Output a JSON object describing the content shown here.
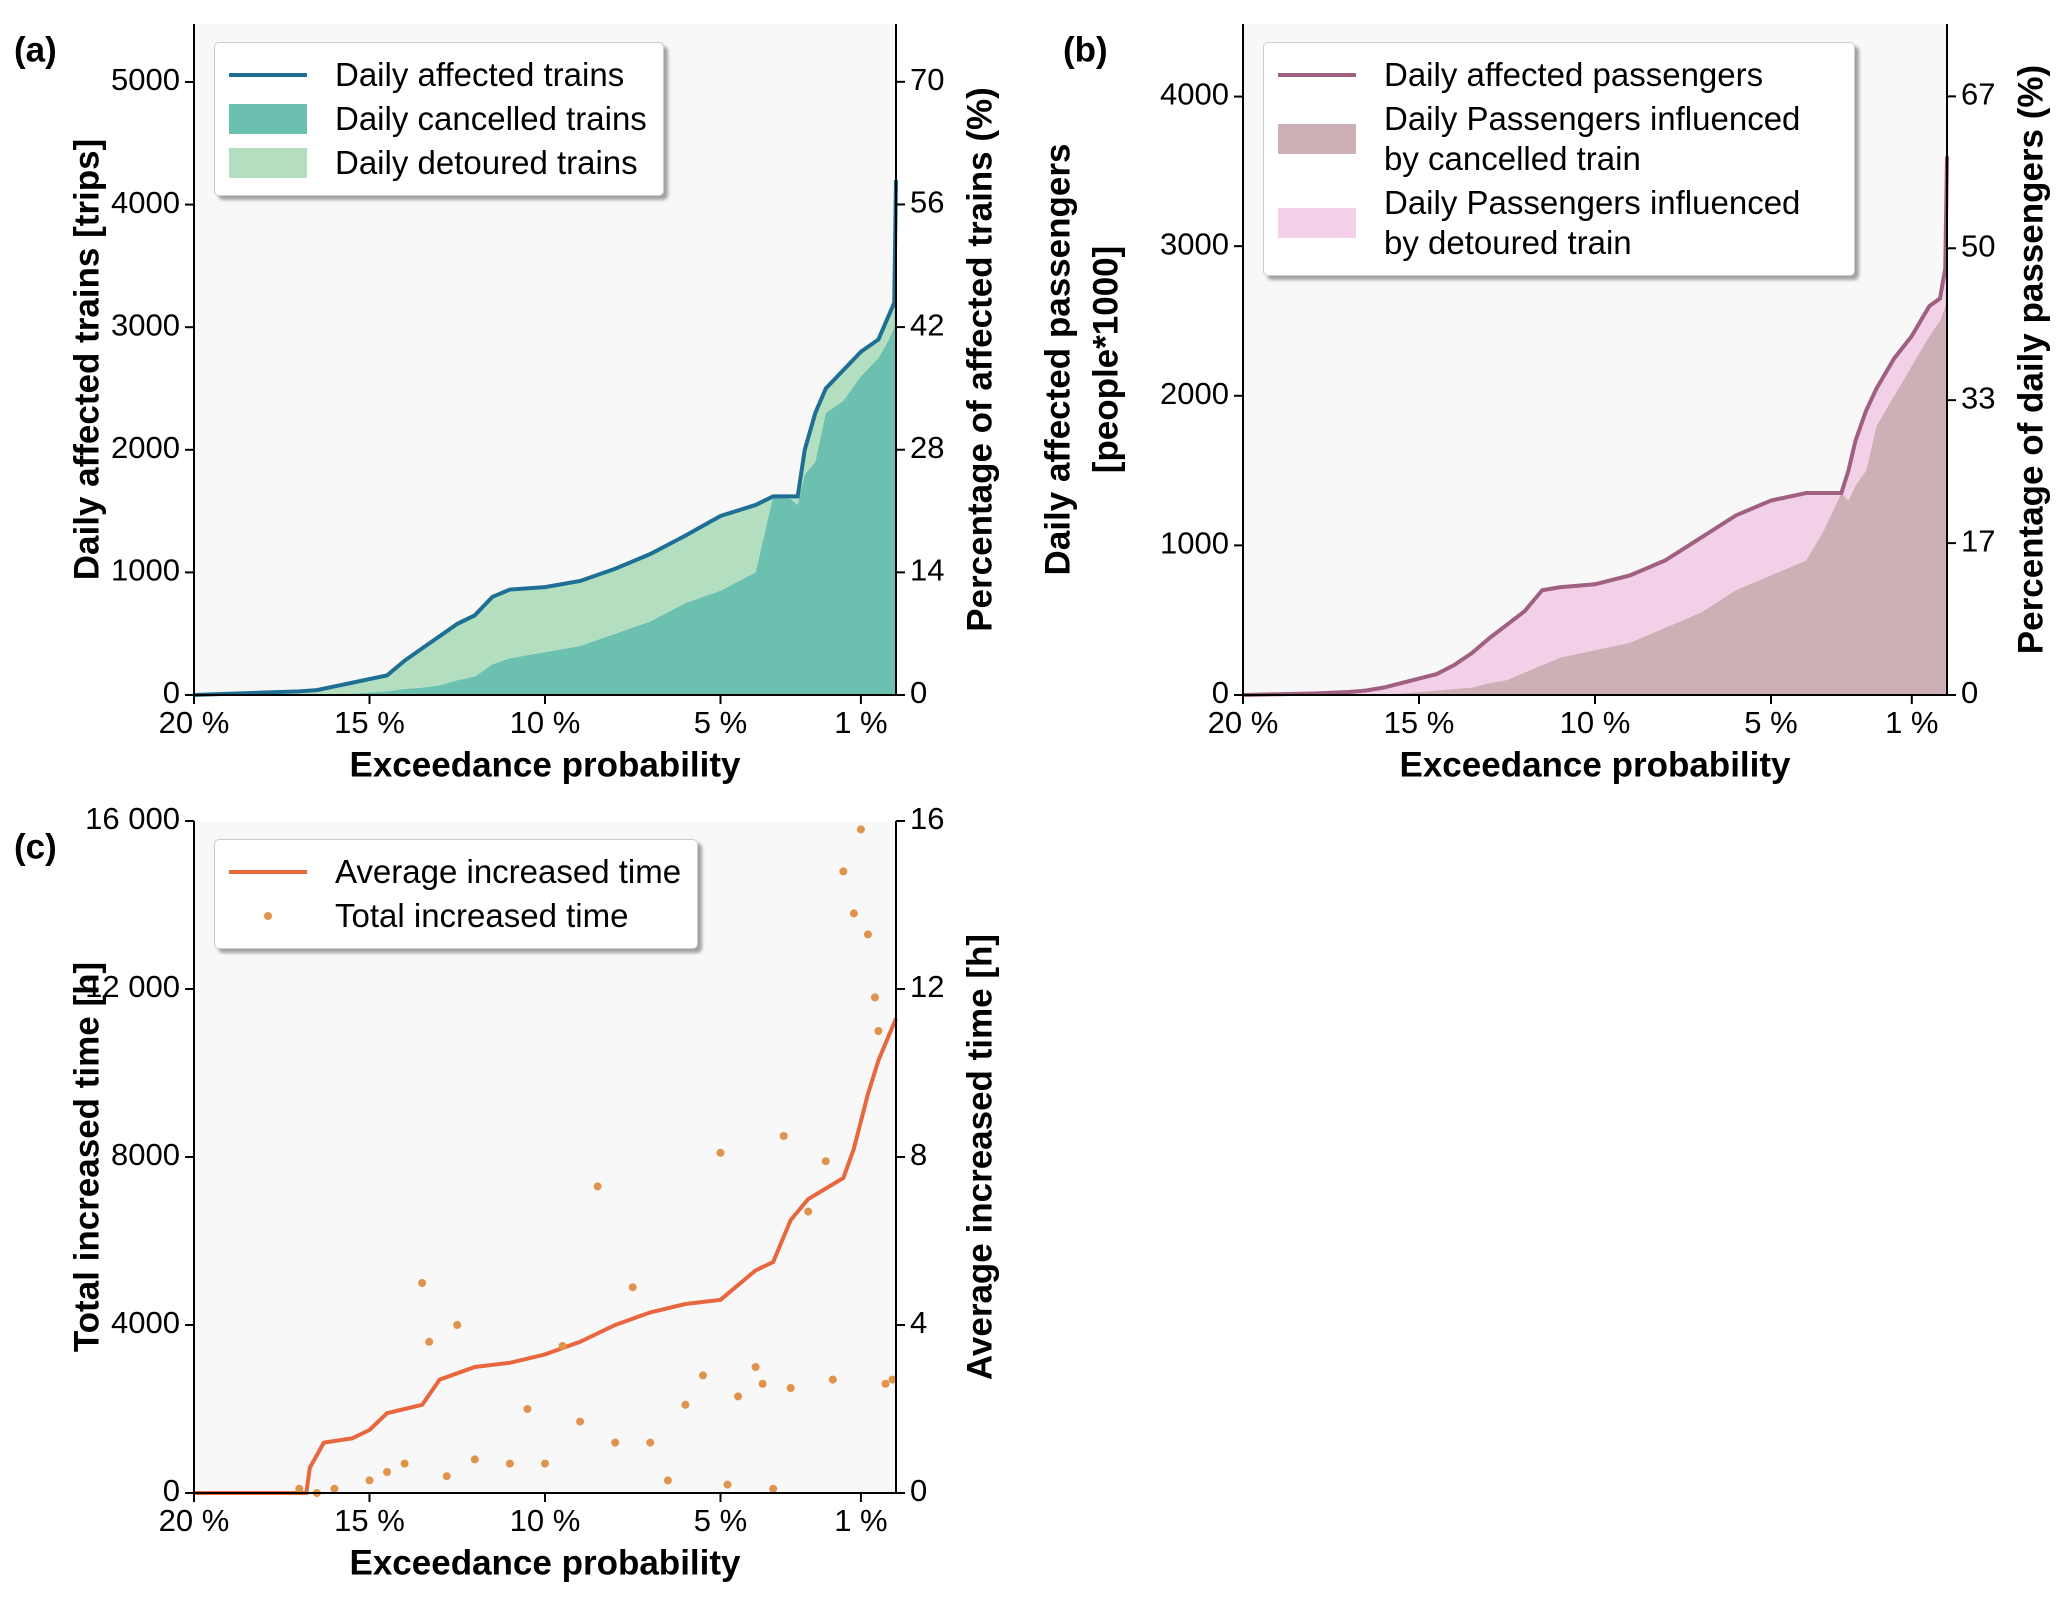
{
  "chart_data": [
    {
      "type": "area",
      "panel_label": "(a)",
      "xlabel": "Exceedance probability",
      "ylabel": [
        "Daily affected trains [trips]"
      ],
      "y2label": "Percentage of affected trains (%)",
      "xlim": [
        20,
        0
      ],
      "xticks": [
        {
          "value": 20,
          "label": "20 %"
        },
        {
          "value": 15,
          "label": "15 %"
        },
        {
          "value": 10,
          "label": "10 %"
        },
        {
          "value": 5,
          "label": "5 %"
        },
        {
          "value": 1,
          "label": "1 %"
        }
      ],
      "ylim": [
        0,
        5473
      ],
      "yticks": [
        0,
        1000,
        2000,
        3000,
        4000,
        5000
      ],
      "y2lim": [
        0,
        76.6
      ],
      "y2ticks": [
        0,
        14,
        28,
        42,
        56,
        70
      ],
      "legend": "upper left",
      "x": [
        20,
        19,
        18,
        17,
        16.5,
        16,
        15.5,
        15,
        14.5,
        14,
        13.5,
        13,
        12.5,
        12,
        11.5,
        11,
        10,
        9,
        8,
        7,
        6,
        5,
        4,
        3.5,
        3,
        2.8,
        2.6,
        2.3,
        2,
        1.5,
        1,
        0.5,
        0.2,
        0.05,
        0
      ],
      "series": [
        {
          "name": "Daily affected trains",
          "kind": "line",
          "color": "#1f6f94",
          "values": [
            0,
            10,
            20,
            30,
            40,
            70,
            100,
            130,
            160,
            280,
            380,
            480,
            580,
            650,
            800,
            860,
            880,
            930,
            1030,
            1150,
            1300,
            1460,
            1550,
            1620,
            1620,
            1620,
            2000,
            2300,
            2500,
            2650,
            2800,
            2900,
            3100,
            3200,
            4200
          ]
        },
        {
          "name": "Daily cancelled trains",
          "kind": "area",
          "color": "#6cc0b0",
          "values": [
            0,
            0,
            0,
            0,
            0,
            0,
            10,
            20,
            30,
            50,
            60,
            80,
            120,
            150,
            250,
            300,
            350,
            400,
            500,
            600,
            750,
            850,
            1000,
            1620,
            1600,
            1550,
            1800,
            1900,
            2300,
            2400,
            2600,
            2750,
            2900,
            3000,
            3700
          ]
        },
        {
          "name": "Daily detoured trains",
          "kind": "area",
          "color": "#b3dfc0",
          "values": [
            0,
            10,
            20,
            30,
            40,
            70,
            90,
            110,
            130,
            230,
            320,
            400,
            460,
            500,
            550,
            560,
            530,
            530,
            530,
            550,
            550,
            610,
            550,
            0,
            20,
            70,
            200,
            400,
            200,
            250,
            200,
            150,
            200,
            200,
            500
          ]
        }
      ]
    },
    {
      "type": "area",
      "panel_label": "(b)",
      "xlabel": "Exceedance probability",
      "ylabel": [
        "Daily affected passengers",
        "[people*1000]"
      ],
      "y2label": "Percentage of daily passengers (%)",
      "xlim": [
        20,
        0
      ],
      "xticks": [
        {
          "value": 20,
          "label": "20 %"
        },
        {
          "value": 15,
          "label": "15 %"
        },
        {
          "value": 10,
          "label": "10 %"
        },
        {
          "value": 5,
          "label": "5 %"
        },
        {
          "value": 1,
          "label": "1 %"
        }
      ],
      "ylim": [
        0,
        4485
      ],
      "yticks": [
        0,
        1000,
        2000,
        3000,
        4000
      ],
      "y2lim": [
        0,
        75.1
      ],
      "y2ticks": [
        0,
        17,
        33,
        50,
        67
      ],
      "legend": "upper left",
      "x": [
        20,
        19,
        18,
        17,
        16.5,
        16,
        15.5,
        15,
        14.5,
        14,
        13.5,
        13,
        12.5,
        12,
        11.5,
        11,
        10,
        9,
        8,
        7,
        6,
        5,
        4,
        3.5,
        3,
        2.8,
        2.6,
        2.3,
        2,
        1.5,
        1,
        0.5,
        0.2,
        0.05,
        0
      ],
      "series": [
        {
          "name": "Daily affected passengers",
          "kind": "line",
          "color": "#a0607f",
          "values": [
            0,
            5,
            10,
            20,
            30,
            50,
            80,
            110,
            140,
            200,
            280,
            380,
            470,
            560,
            700,
            720,
            740,
            800,
            900,
            1050,
            1200,
            1300,
            1350,
            1350,
            1350,
            1500,
            1700,
            1900,
            2050,
            2250,
            2400,
            2600,
            2650,
            2850,
            3600
          ]
        },
        {
          "name": "Daily Passengers influenced by cancelled train",
          "kind": "area",
          "color": "#cdb0b5",
          "values": [
            0,
            0,
            0,
            0,
            0,
            0,
            10,
            20,
            30,
            40,
            50,
            80,
            100,
            150,
            200,
            250,
            300,
            350,
            450,
            550,
            700,
            800,
            900,
            1100,
            1350,
            1300,
            1400,
            1500,
            1800,
            2000,
            2200,
            2400,
            2500,
            2600,
            3200
          ]
        },
        {
          "name": "Daily Passengers influenced by detoured train",
          "kind": "area",
          "color": "#f2d0e8",
          "values": [
            0,
            5,
            10,
            20,
            30,
            50,
            70,
            90,
            110,
            160,
            230,
            300,
            370,
            410,
            500,
            470,
            440,
            450,
            450,
            500,
            500,
            500,
            450,
            250,
            0,
            200,
            300,
            400,
            250,
            250,
            200,
            200,
            150,
            250,
            400
          ]
        }
      ]
    },
    {
      "type": "line",
      "panel_label": "(c)",
      "xlabel": "Exceedance probability",
      "ylabel": [
        "Total increased time [h]"
      ],
      "y2label": "Average increased time [h]",
      "xlim": [
        20,
        0
      ],
      "xticks": [
        {
          "value": 20,
          "label": "20 %"
        },
        {
          "value": 15,
          "label": "15 %"
        },
        {
          "value": 10,
          "label": "10 %"
        },
        {
          "value": 5,
          "label": "5 %"
        },
        {
          "value": 1,
          "label": "1 %"
        }
      ],
      "ylim": [
        0,
        16000
      ],
      "yticks": [
        0,
        4000,
        8000,
        {
          "value": 12000,
          "label": "12 000"
        },
        {
          "value": 16000,
          "label": "16 000"
        }
      ],
      "y2lim": [
        0,
        16
      ],
      "y2ticks": [
        0,
        4,
        8,
        12,
        16
      ],
      "legend": "upper left",
      "series": [
        {
          "name": "Average increased time",
          "kind": "line",
          "axis": "y2",
          "color": "#e8673f",
          "x": [
            20,
            17,
            16.8,
            16.7,
            16.3,
            15.5,
            15,
            14.5,
            14,
            13.5,
            13,
            12,
            11,
            10,
            9,
            8,
            7,
            6,
            5,
            4,
            3.5,
            3,
            2.5,
            1.5,
            1.2,
            0.8,
            0.5,
            0
          ],
          "values": [
            0,
            0,
            0,
            0.6,
            1.2,
            1.3,
            1.5,
            1.9,
            2.0,
            2.1,
            2.7,
            3.0,
            3.1,
            3.3,
            3.6,
            4.0,
            4.3,
            4.5,
            4.6,
            5.3,
            5.5,
            6.5,
            7.0,
            7.5,
            8.2,
            9.5,
            10.3,
            11.3
          ]
        },
        {
          "name": "Total increased time",
          "kind": "scatter",
          "color": "#e0934a",
          "x": [
            17,
            16.5,
            16,
            15,
            14.5,
            14,
            13.5,
            13.3,
            12.8,
            12.5,
            12,
            11,
            10.5,
            10,
            9.5,
            9,
            8.5,
            8,
            7.5,
            7,
            6.5,
            6,
            5.5,
            5,
            4.8,
            4.5,
            4,
            3.8,
            3.5,
            3.2,
            3,
            2.5,
            2,
            1.8,
            1.5,
            1.2,
            1,
            0.8,
            0.6,
            0.5,
            0.3,
            0.1
          ],
          "values": [
            100,
            0,
            100,
            300,
            500,
            700,
            5000,
            3600,
            400,
            4000,
            800,
            700,
            2000,
            700,
            3500,
            1700,
            7300,
            1200,
            4900,
            1200,
            300,
            2100,
            2800,
            8100,
            200,
            2300,
            3000,
            2600,
            100,
            8500,
            2500,
            6700,
            7900,
            2700,
            14800,
            13800,
            15800,
            13300,
            11800,
            11000,
            2600,
            2700
          ]
        }
      ]
    }
  ]
}
